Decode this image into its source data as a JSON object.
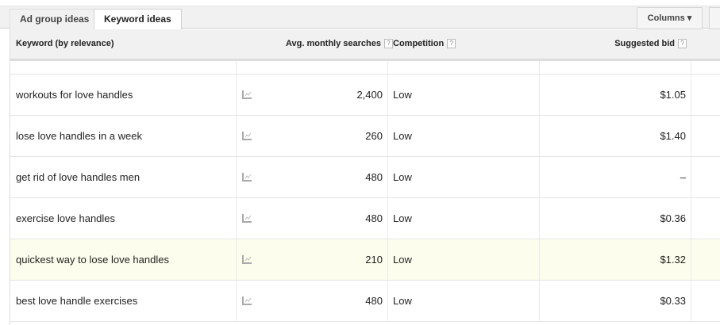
{
  "tabs": [
    {
      "label": "Ad group ideas",
      "active": false
    },
    {
      "label": "Keyword ideas",
      "active": true
    }
  ],
  "columns_button": "Columns ▾",
  "headers": {
    "keyword": "Keyword (by relevance)",
    "searches": "Avg. monthly searches",
    "competition": "Competition",
    "bid": "Suggested bid",
    "help": "?"
  },
  "rows": [
    {
      "keyword": "workouts for love handles",
      "searches": "2,400",
      "competition": "Low",
      "bid": "$1.05"
    },
    {
      "keyword": "lose love handles in a week",
      "searches": "260",
      "competition": "Low",
      "bid": "$1.40"
    },
    {
      "keyword": "get rid of love handles men",
      "searches": "480",
      "competition": "Low",
      "bid": "–"
    },
    {
      "keyword": "exercise love handles",
      "searches": "480",
      "competition": "Low",
      "bid": "$0.36"
    },
    {
      "keyword": "quickest way to lose love handles",
      "searches": "210",
      "competition": "Low",
      "bid": "$1.32",
      "highlighted": true
    },
    {
      "keyword": "best love handle exercises",
      "searches": "480",
      "competition": "Low",
      "bid": "$0.33"
    }
  ],
  "colors": {
    "highlight": "#fcfdec",
    "header_bg": "#f1f1f1"
  }
}
